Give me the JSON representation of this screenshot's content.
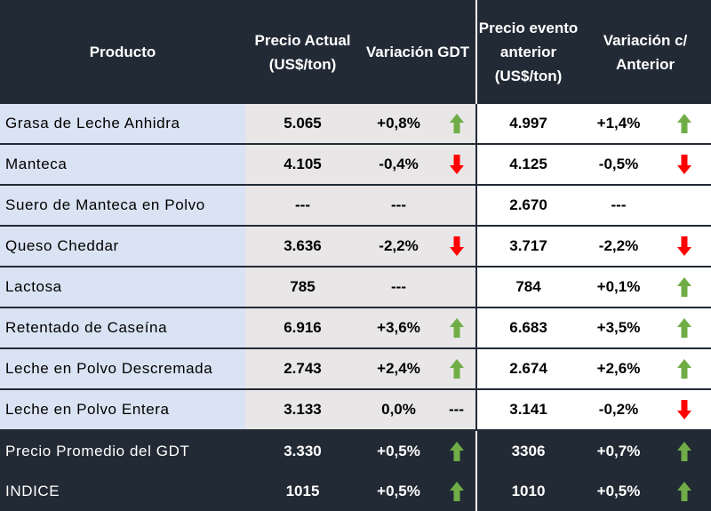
{
  "colors": {
    "header": "#222a35",
    "name_bg": "#dae3f3",
    "current_bg": "#e8e6e6",
    "up": "#70ad47",
    "down": "#ff0000"
  },
  "headers": {
    "product": "Producto",
    "current_price": "Precio Actual (US$/ton)",
    "gdt_change": "Variación GDT",
    "previous_price": "Precio evento anterior (US$/ton)",
    "change_vs_previous": "Variación c/ Anterior"
  },
  "rows": [
    {
      "product": "Grasa de Leche Anhidra",
      "current": "5.065",
      "gdt_change": "+0,8%",
      "gdt_icon": "up-arrow-icon",
      "previous": "4.997",
      "prev_change": "+1,4%",
      "prev_icon": "up-arrow-icon"
    },
    {
      "product": "Manteca",
      "current": "4.105",
      "gdt_change": "-0,4%",
      "gdt_icon": "down-arrow-icon",
      "previous": "4.125",
      "prev_change": "-0,5%",
      "prev_icon": "down-arrow-icon"
    },
    {
      "product": "Suero de Manteca en Polvo",
      "current": "---",
      "gdt_change": "---",
      "gdt_icon": "",
      "previous": "2.670",
      "prev_change": "---",
      "prev_icon": ""
    },
    {
      "product": "Queso Cheddar",
      "current": "3.636",
      "gdt_change": "-2,2%",
      "gdt_icon": "down-arrow-icon",
      "previous": "3.717",
      "prev_change": "-2,2%",
      "prev_icon": "down-arrow-icon"
    },
    {
      "product": "Lactosa",
      "current": "785",
      "gdt_change": "---",
      "gdt_icon": "",
      "previous": "784",
      "prev_change": "+0,1%",
      "prev_icon": "up-arrow-icon"
    },
    {
      "product": "Retentado de Caseína",
      "current": "6.916",
      "gdt_change": "+3,6%",
      "gdt_icon": "up-arrow-icon",
      "previous": "6.683",
      "prev_change": "+3,5%",
      "prev_icon": "up-arrow-icon"
    },
    {
      "product": "Leche en Polvo Descremada",
      "current": "2.743",
      "gdt_change": "+2,4%",
      "gdt_icon": "up-arrow-icon",
      "previous": "2.674",
      "prev_change": "+2,6%",
      "prev_icon": "up-arrow-icon"
    },
    {
      "product": "Leche en Polvo Entera",
      "current": "3.133",
      "gdt_change": "0,0%",
      "gdt_icon": "dash",
      "gdt_dash": "---",
      "previous": "3.141",
      "prev_change": "-0,2%",
      "prev_icon": "down-arrow-icon"
    }
  ],
  "summary": [
    {
      "product": "Precio Promedio del GDT",
      "current": "3.330",
      "gdt_change": "+0,5%",
      "gdt_icon": "up-arrow-icon",
      "previous": "3306",
      "prev_change": "+0,7%",
      "prev_icon": "up-arrow-icon"
    },
    {
      "product": "INDICE",
      "current": "1015",
      "gdt_change": "+0,5%",
      "gdt_icon": "up-arrow-icon",
      "previous": "1010",
      "prev_change": "+0,5%",
      "prev_icon": "up-arrow-icon"
    }
  ]
}
